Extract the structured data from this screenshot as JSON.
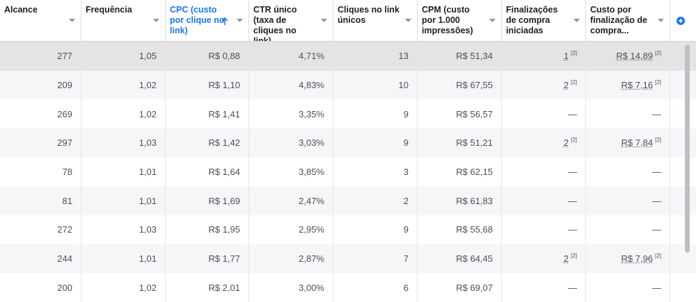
{
  "table": {
    "headers": [
      "Alcance",
      "Frequência",
      "CPC (custo por clique no link)",
      "CTR único (taxa de cliques no link)",
      "Cliques no link únicos",
      "CPM (custo por 1.000 impressões)",
      "Finalizações de compra iniciadas",
      "Custo por finalização de compra..."
    ],
    "rows": [
      [
        "277",
        "1,05",
        "R$ 0,88",
        "4,71%",
        "13",
        "R$ 51,34",
        {
          "text": "1",
          "note": "[2]"
        },
        {
          "text": "R$ 14,89",
          "note": "[2]"
        }
      ],
      [
        "209",
        "1,02",
        "R$ 1,10",
        "4,83%",
        "10",
        "R$ 67,55",
        {
          "text": "2",
          "note": "[2]"
        },
        {
          "text": "R$ 7,16",
          "note": "[2]"
        }
      ],
      [
        "269",
        "1,02",
        "R$ 1,41",
        "3,35%",
        "9",
        "R$ 56,57",
        "—",
        "—"
      ],
      [
        "297",
        "1,03",
        "R$ 1,42",
        "3,03%",
        "9",
        "R$ 51,21",
        {
          "text": "2",
          "note": "[2]"
        },
        {
          "text": "R$ 7,84",
          "note": "[2]"
        }
      ],
      [
        "78",
        "1,01",
        "R$ 1,64",
        "3,85%",
        "3",
        "R$ 62,15",
        "—",
        "—"
      ],
      [
        "81",
        "1,01",
        "R$ 1,69",
        "2,47%",
        "2",
        "R$ 61,83",
        "—",
        "—"
      ],
      [
        "272",
        "1,03",
        "R$ 1,95",
        "2,95%",
        "9",
        "R$ 55,68",
        "—",
        "—"
      ],
      [
        "244",
        "1,01",
        "R$ 1,77",
        "2,87%",
        "7",
        "R$ 64,45",
        {
          "text": "2",
          "note": "[2]"
        },
        {
          "text": "R$ 7,96",
          "note": "[2]"
        }
      ],
      [
        "200",
        "1,02",
        "R$ 2,01",
        "3,00%",
        "6",
        "R$ 69,07",
        "—",
        "—"
      ]
    ]
  }
}
